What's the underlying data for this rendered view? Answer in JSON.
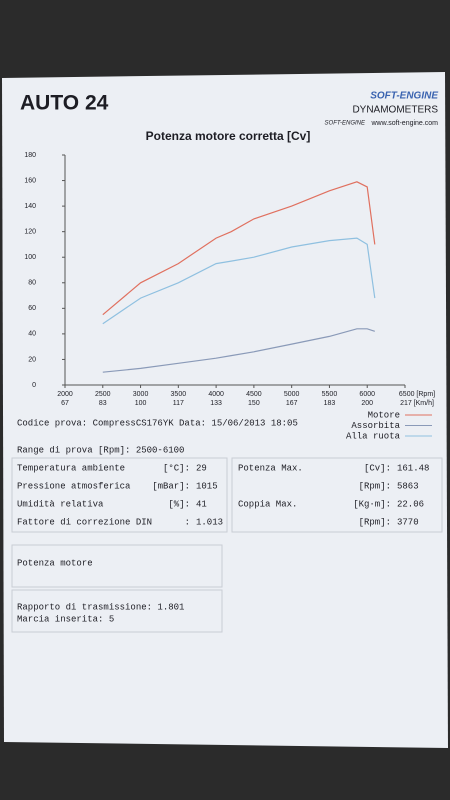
{
  "header": {
    "title": "AUTO 24",
    "logo": "SOFT-ENGINE",
    "logo_sub": "DYNAMOMETERS",
    "logo_brand": "SOFT-ENGINE",
    "website": "www.soft-engine.com"
  },
  "chart_data": {
    "type": "line",
    "title": "Potenza motore corretta [Cv]",
    "x": [
      2500,
      3000,
      3500,
      4000,
      4200,
      4500,
      5000,
      5500,
      5863,
      6000,
      6100
    ],
    "series": [
      {
        "name": "Motore",
        "color": "#e0705f",
        "values": [
          55,
          80,
          95,
          115,
          120,
          130,
          140,
          152,
          159,
          155,
          110
        ]
      },
      {
        "name": "Assorbita",
        "color": "#8a9ab8",
        "values": [
          10,
          13,
          17,
          21,
          23,
          26,
          32,
          38,
          44,
          44,
          42
        ]
      },
      {
        "name": "Alla ruota",
        "color": "#8fc0e0",
        "values": [
          48,
          68,
          80,
          95,
          97,
          100,
          108,
          113,
          115,
          110,
          68
        ]
      }
    ],
    "xlim": [
      2000,
      6500
    ],
    "ylim": [
      0,
      180
    ],
    "xticks": [
      2000,
      2500,
      3000,
      3500,
      4000,
      4500,
      5000,
      5500,
      6000,
      {
        "value": 6500,
        "label": "6500 [Rpm]"
      }
    ],
    "speed_labels": [
      "67",
      "83",
      "100",
      "117",
      "133",
      "150",
      "167",
      "183",
      "200",
      "217 [Km/h]"
    ],
    "yticks": [
      0,
      20,
      40,
      60,
      80,
      100,
      120,
      140,
      160,
      180
    ],
    "grid": false
  },
  "test": {
    "code": "Codice prova: CompressCS176YK  Data: 15/06/2013 18:05",
    "range": "Range di prova [Rpm]: 2500-6100"
  },
  "conditions": [
    [
      "Temperatura ambiente",
      "[°C]:",
      "29"
    ],
    [
      "Pressione atmosferica",
      "[mBar]:",
      "1015"
    ],
    [
      "Umidità relativa",
      "[%]:",
      "41"
    ],
    [
      "Fattore di correzione DIN",
      ":",
      "1.013"
    ]
  ],
  "results": [
    [
      "Potenza Max.",
      "[Cv]:",
      "161.48"
    ],
    [
      "",
      "[Rpm]:",
      "5863"
    ],
    [
      "Coppia Max.",
      "[Kg·m]:",
      "22.06"
    ],
    [
      "",
      "[Rpm]:",
      "3770"
    ]
  ],
  "section": "Potenza motore",
  "transmission": [
    "Rapporto di trasmissione: 1.801",
    "Marcia inserita: 5"
  ]
}
